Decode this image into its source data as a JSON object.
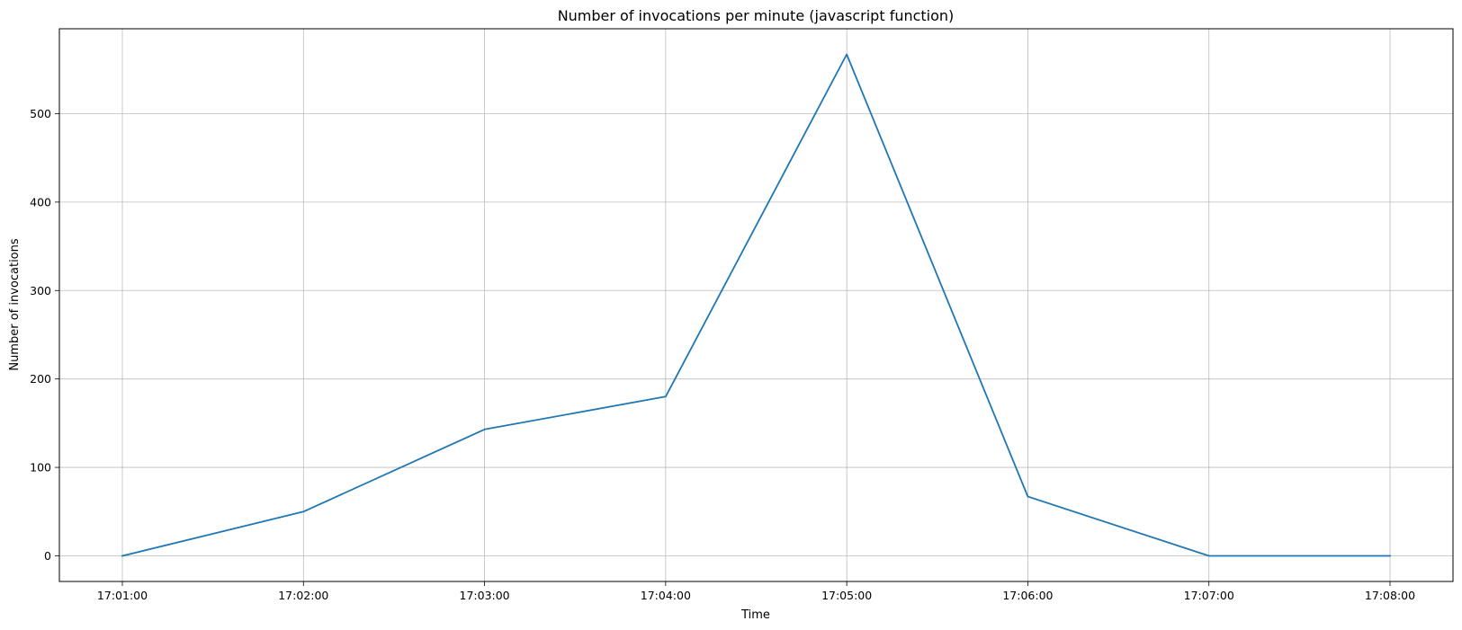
{
  "chart_data": {
    "type": "line",
    "title": "Number of invocations per minute (javascript function)",
    "xlabel": "Time",
    "ylabel": "Number of invocations",
    "categories": [
      "17:01:00",
      "17:02:00",
      "17:03:00",
      "17:04:00",
      "17:05:00",
      "17:06:00",
      "17:07:00",
      "17:08:00"
    ],
    "series": [
      {
        "values": [
          0,
          50,
          143,
          180,
          567,
          67,
          0,
          0
        ],
        "color": "#1f77b4"
      }
    ],
    "yticks": [
      0,
      100,
      200,
      300,
      400,
      500
    ],
    "ylim": [
      -29,
      596
    ],
    "grid": true,
    "legend": "none"
  }
}
